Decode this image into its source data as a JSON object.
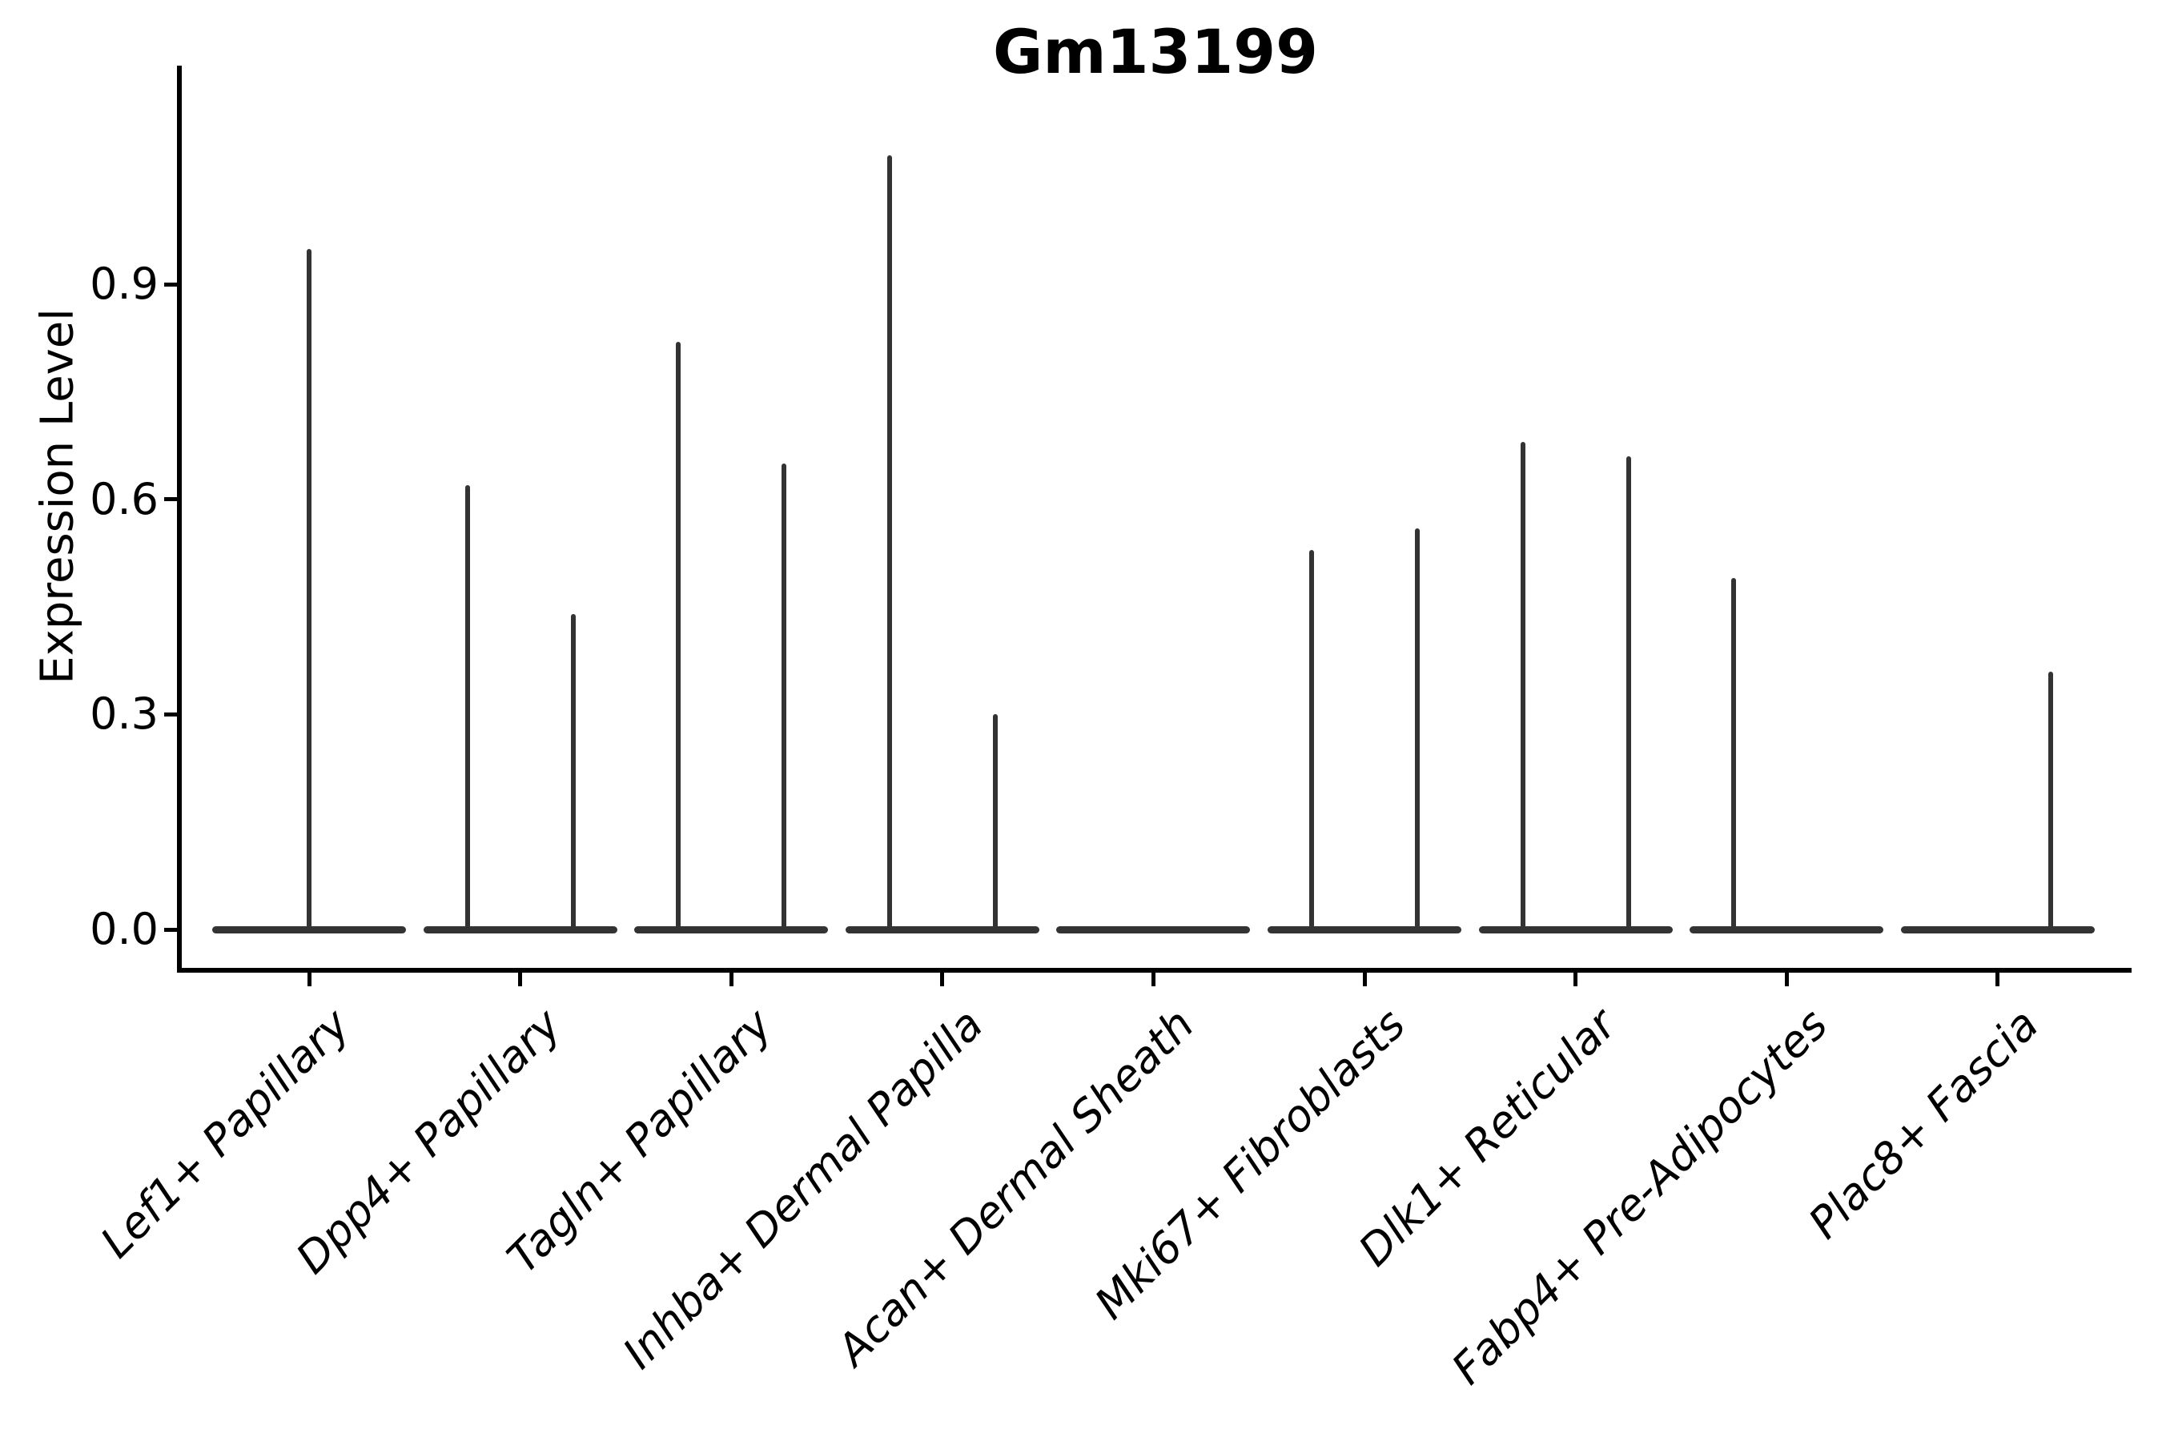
{
  "chart_data": {
    "type": "violin",
    "title": "Gm13199",
    "ylabel": "Expression Level",
    "xlabel": "",
    "ylim": [
      0,
      1.2
    ],
    "yticks": [
      {
        "label": "0.0",
        "value": 0.0
      },
      {
        "label": "0.3",
        "value": 0.3
      },
      {
        "label": "0.6",
        "value": 0.6
      },
      {
        "label": "0.9",
        "value": 0.9
      }
    ],
    "grid": false,
    "legend": "none",
    "baseline_value": 0.0,
    "categories": [
      "Lef1+ Papillary",
      "Dpp4+ Papillary",
      "Tagln+ Papillary",
      "Inhba+ Dermal Papilla",
      "Acan+ Dermal Sheath",
      "Mki67+ Fibroblasts",
      "Dlk1+ Reticular",
      "Fabp4+ Pre-Adipocytes",
      "Plac8+ Fascia"
    ],
    "violins": [
      {
        "category": "Lef1+ Papillary",
        "base_at_zero": true,
        "spikes": [
          {
            "pos": 0.5,
            "max": 0.95
          }
        ]
      },
      {
        "category": "Dpp4+ Papillary",
        "base_at_zero": true,
        "spikes": [
          {
            "pos": 0.25,
            "max": 0.62
          },
          {
            "pos": 0.75,
            "max": 0.44
          }
        ]
      },
      {
        "category": "Tagln+ Papillary",
        "base_at_zero": true,
        "spikes": [
          {
            "pos": 0.25,
            "max": 0.82
          },
          {
            "pos": 0.75,
            "max": 0.65
          }
        ]
      },
      {
        "category": "Inhba+ Dermal Papilla",
        "base_at_zero": true,
        "spikes": [
          {
            "pos": 0.25,
            "max": 1.08
          },
          {
            "pos": 0.75,
            "max": 0.3
          }
        ]
      },
      {
        "category": "Acan+ Dermal Sheath",
        "base_at_zero": true,
        "spikes": []
      },
      {
        "category": "Mki67+ Fibroblasts",
        "base_at_zero": true,
        "spikes": [
          {
            "pos": 0.25,
            "max": 0.53
          },
          {
            "pos": 0.75,
            "max": 0.56
          }
        ]
      },
      {
        "category": "Dlk1+ Reticular",
        "base_at_zero": true,
        "spikes": [
          {
            "pos": 0.25,
            "max": 0.68
          },
          {
            "pos": 0.75,
            "max": 0.66
          }
        ]
      },
      {
        "category": "Fabp4+ Pre-Adipocytes",
        "base_at_zero": true,
        "spikes": [
          {
            "pos": 0.25,
            "max": 0.49
          }
        ]
      },
      {
        "category": "Plac8+ Fascia",
        "base_at_zero": true,
        "spikes": [
          {
            "pos": 0.75,
            "max": 0.36
          }
        ]
      }
    ]
  },
  "colors": {
    "background": "#ffffff",
    "axis": "#000000",
    "text": "#000000",
    "violin": "#333333"
  }
}
